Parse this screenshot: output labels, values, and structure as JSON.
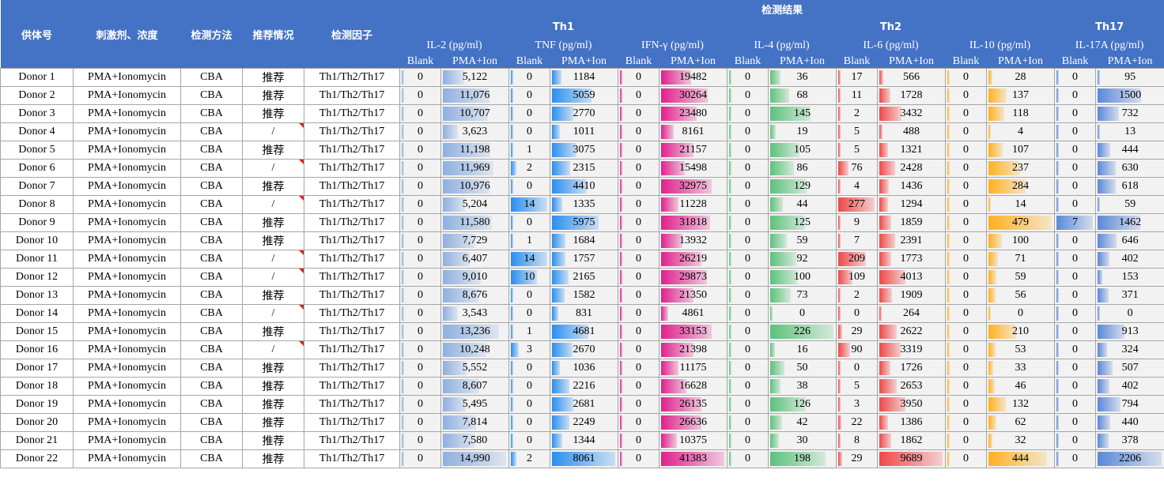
{
  "header": {
    "columns": [
      "供体号",
      "刺激剂、浓度",
      "检测方法",
      "推荐情况",
      "检测因子"
    ],
    "results": "检测结果",
    "groups": [
      {
        "name": "Th1",
        "cytokines": [
          "IL-2 (pg/ml)",
          "TNF (pg/ml)",
          "IFN-γ (pg/ml)"
        ]
      },
      {
        "name": "Th2",
        "cytokines": [
          "IL-4 (pg/ml)",
          "IL-6 (pg/ml)",
          "IL-10 (pg/ml)"
        ]
      },
      {
        "name": "Th17",
        "cytokines": [
          "IL-17A (pg/ml)"
        ]
      }
    ],
    "conditions": [
      "Blank",
      "PMA+Ion"
    ]
  },
  "bar_colors": [
    "#8fb0e0",
    "#2a8ff0",
    "#e0208c",
    "#5cc27a",
    "#f04848",
    "#ffb020",
    "#5b88d8"
  ],
  "rows": [
    {
      "donor": "Donor 1",
      "stimulant": "PMA+Ionomycin",
      "method": "CBA",
      "recommendation": "推荐",
      "factor": "Th1/Th2/Th17",
      "values": [
        0,
        {
          "value": 5122,
          "label": "5,122"
        },
        0,
        1184,
        0,
        19482,
        0,
        36,
        17,
        566,
        0,
        28,
        0,
        95
      ]
    },
    {
      "donor": "Donor 2",
      "stimulant": "PMA+Ionomycin",
      "method": "CBA",
      "recommendation": "推荐",
      "factor": "Th1/Th2/Th17",
      "values": [
        0,
        {
          "value": 11076,
          "label": "11,076"
        },
        0,
        5059,
        0,
        30264,
        0,
        68,
        11,
        1728,
        0,
        137,
        0,
        1500
      ]
    },
    {
      "donor": "Donor 3",
      "stimulant": "PMA+Ionomycin",
      "method": "CBA",
      "recommendation": "推荐",
      "factor": "Th1/Th2/Th17",
      "values": [
        0,
        {
          "value": 10707,
          "label": "10,707"
        },
        0,
        2770,
        0,
        23480,
        0,
        145,
        2,
        3432,
        0,
        118,
        0,
        732
      ]
    },
    {
      "donor": "Donor 4",
      "stimulant": "PMA+Ionomycin",
      "method": "CBA",
      "recommendation": "/",
      "factor": "Th1/Th2/Th17",
      "values": [
        0,
        {
          "value": 3623,
          "label": "3,623"
        },
        0,
        1011,
        0,
        8161,
        0,
        19,
        5,
        488,
        0,
        4,
        0,
        13
      ]
    },
    {
      "donor": "Donor 5",
      "stimulant": "PMA+Ionomycin",
      "method": "CBA",
      "recommendation": "推荐",
      "factor": "Th1/Th2/Th17",
      "values": [
        0,
        {
          "value": 11198,
          "label": "11,198"
        },
        1,
        3075,
        0,
        21157,
        0,
        105,
        5,
        1321,
        0,
        107,
        0,
        444
      ]
    },
    {
      "donor": "Donor 6",
      "stimulant": "PMA+Ionomycin",
      "method": "CBA",
      "recommendation": "/",
      "factor": "Th1/Th2/Th17",
      "values": [
        0,
        {
          "value": 11969,
          "label": "11,969"
        },
        2,
        2315,
        0,
        15498,
        0,
        86,
        76,
        2428,
        0,
        237,
        0,
        630
      ]
    },
    {
      "donor": "Donor 7",
      "stimulant": "PMA+Ionomycin",
      "method": "CBA",
      "recommendation": "推荐",
      "factor": "Th1/Th2/Th17",
      "values": [
        0,
        {
          "value": 10976,
          "label": "10,976"
        },
        0,
        4410,
        0,
        32975,
        0,
        129,
        4,
        1436,
        0,
        284,
        0,
        618
      ]
    },
    {
      "donor": "Donor 8",
      "stimulant": "PMA+Ionomycin",
      "method": "CBA",
      "recommendation": "/",
      "factor": "Th1/Th2/Th17",
      "values": [
        0,
        {
          "value": 5204,
          "label": "5,204"
        },
        14,
        1335,
        0,
        11228,
        0,
        44,
        277,
        1294,
        0,
        14,
        0,
        59
      ]
    },
    {
      "donor": "Donor 9",
      "stimulant": "PMA+Ionomycin",
      "method": "CBA",
      "recommendation": "推荐",
      "factor": "Th1/Th2/Th17",
      "values": [
        0,
        {
          "value": 11580,
          "label": "11,580"
        },
        0,
        5975,
        0,
        31818,
        0,
        125,
        9,
        1859,
        0,
        479,
        7,
        1462
      ]
    },
    {
      "donor": "Donor 10",
      "stimulant": "PMA+Ionomycin",
      "method": "CBA",
      "recommendation": "推荐",
      "factor": "Th1/Th2/Th17",
      "values": [
        0,
        {
          "value": 7729,
          "label": "7,729"
        },
        1,
        1684,
        0,
        13932,
        0,
        59,
        7,
        2391,
        0,
        100,
        0,
        646
      ]
    },
    {
      "donor": "Donor 11",
      "stimulant": "PMA+Ionomycin",
      "method": "CBA",
      "recommendation": "/",
      "factor": "Th1/Th2/Th17",
      "values": [
        0,
        {
          "value": 6407,
          "label": "6,407"
        },
        14,
        1757,
        0,
        26219,
        0,
        92,
        209,
        1773,
        0,
        71,
        0,
        402
      ]
    },
    {
      "donor": "Donor 12",
      "stimulant": "PMA+Ionomycin",
      "method": "CBA",
      "recommendation": "/",
      "factor": "Th1/Th2/Th17",
      "values": [
        0,
        {
          "value": 9010,
          "label": "9,010"
        },
        10,
        2165,
        0,
        29873,
        0,
        100,
        109,
        4013,
        0,
        59,
        0,
        153
      ]
    },
    {
      "donor": "Donor 13",
      "stimulant": "PMA+Ionomycin",
      "method": "CBA",
      "recommendation": "推荐",
      "factor": "Th1/Th2/Th17",
      "values": [
        0,
        {
          "value": 8676,
          "label": "8,676"
        },
        0,
        1582,
        0,
        21350,
        0,
        73,
        2,
        1909,
        0,
        56,
        0,
        371
      ]
    },
    {
      "donor": "Donor 14",
      "stimulant": "PMA+Ionomycin",
      "method": "CBA",
      "recommendation": "/",
      "factor": "Th1/Th2/Th17",
      "values": [
        0,
        {
          "value": 3543,
          "label": "3,543"
        },
        0,
        831,
        0,
        4861,
        0,
        0,
        0,
        264,
        0,
        0,
        0,
        0
      ]
    },
    {
      "donor": "Donor 15",
      "stimulant": "PMA+Ionomycin",
      "method": "CBA",
      "recommendation": "推荐",
      "factor": "Th1/Th2/Th17",
      "values": [
        0,
        {
          "value": 13236,
          "label": "13,236"
        },
        1,
        4681,
        0,
        33153,
        0,
        226,
        29,
        2622,
        0,
        210,
        0,
        913
      ]
    },
    {
      "donor": "Donor 16",
      "stimulant": "PMA+Ionomycin",
      "method": "CBA",
      "recommendation": "/",
      "factor": "Th1/Th2/Th17",
      "values": [
        0,
        {
          "value": 10248,
          "label": "10,248"
        },
        3,
        2670,
        0,
        21398,
        0,
        16,
        90,
        3319,
        0,
        53,
        0,
        324
      ]
    },
    {
      "donor": "Donor 17",
      "stimulant": "PMA+Ionomycin",
      "method": "CBA",
      "recommendation": "推荐",
      "factor": "Th1/Th2/Th17",
      "values": [
        0,
        {
          "value": 5552,
          "label": "5,552"
        },
        0,
        1036,
        0,
        11175,
        0,
        50,
        0,
        1726,
        0,
        33,
        0,
        507
      ]
    },
    {
      "donor": "Donor 18",
      "stimulant": "PMA+Ionomycin",
      "method": "CBA",
      "recommendation": "推荐",
      "factor": "Th1/Th2/Th17",
      "values": [
        0,
        {
          "value": 8607,
          "label": "8,607"
        },
        0,
        2216,
        0,
        16628,
        0,
        38,
        5,
        2653,
        0,
        46,
        0,
        402
      ]
    },
    {
      "donor": "Donor 19",
      "stimulant": "PMA+Ionomycin",
      "method": "CBA",
      "recommendation": "推荐",
      "factor": "Th1/Th2/Th17",
      "values": [
        0,
        {
          "value": 5495,
          "label": "5,495"
        },
        0,
        2681,
        0,
        26135,
        0,
        126,
        3,
        3950,
        0,
        132,
        0,
        794
      ]
    },
    {
      "donor": "Donor 20",
      "stimulant": "PMA+Ionomycin",
      "method": "CBA",
      "recommendation": "推荐",
      "factor": "Th1/Th2/Th17",
      "values": [
        0,
        {
          "value": 7814,
          "label": "7,814"
        },
        0,
        2249,
        0,
        26636,
        0,
        42,
        22,
        1386,
        0,
        62,
        0,
        440
      ]
    },
    {
      "donor": "Donor 21",
      "stimulant": "PMA+Ionomycin",
      "method": "CBA",
      "recommendation": "推荐",
      "factor": "Th1/Th2/Th17",
      "values": [
        0,
        {
          "value": 7580,
          "label": "7,580"
        },
        0,
        1344,
        0,
        10375,
        0,
        30,
        8,
        1862,
        0,
        32,
        0,
        378
      ]
    },
    {
      "donor": "Donor 22",
      "stimulant": "PMA+Ionomycin",
      "method": "CBA",
      "recommendation": "推荐",
      "factor": "Th1/Th2/Th17",
      "values": [
        0,
        {
          "value": 14990,
          "label": "14,990"
        },
        2,
        8061,
        0,
        41383,
        0,
        198,
        29,
        9689,
        0,
        444,
        0,
        2206
      ]
    }
  ]
}
